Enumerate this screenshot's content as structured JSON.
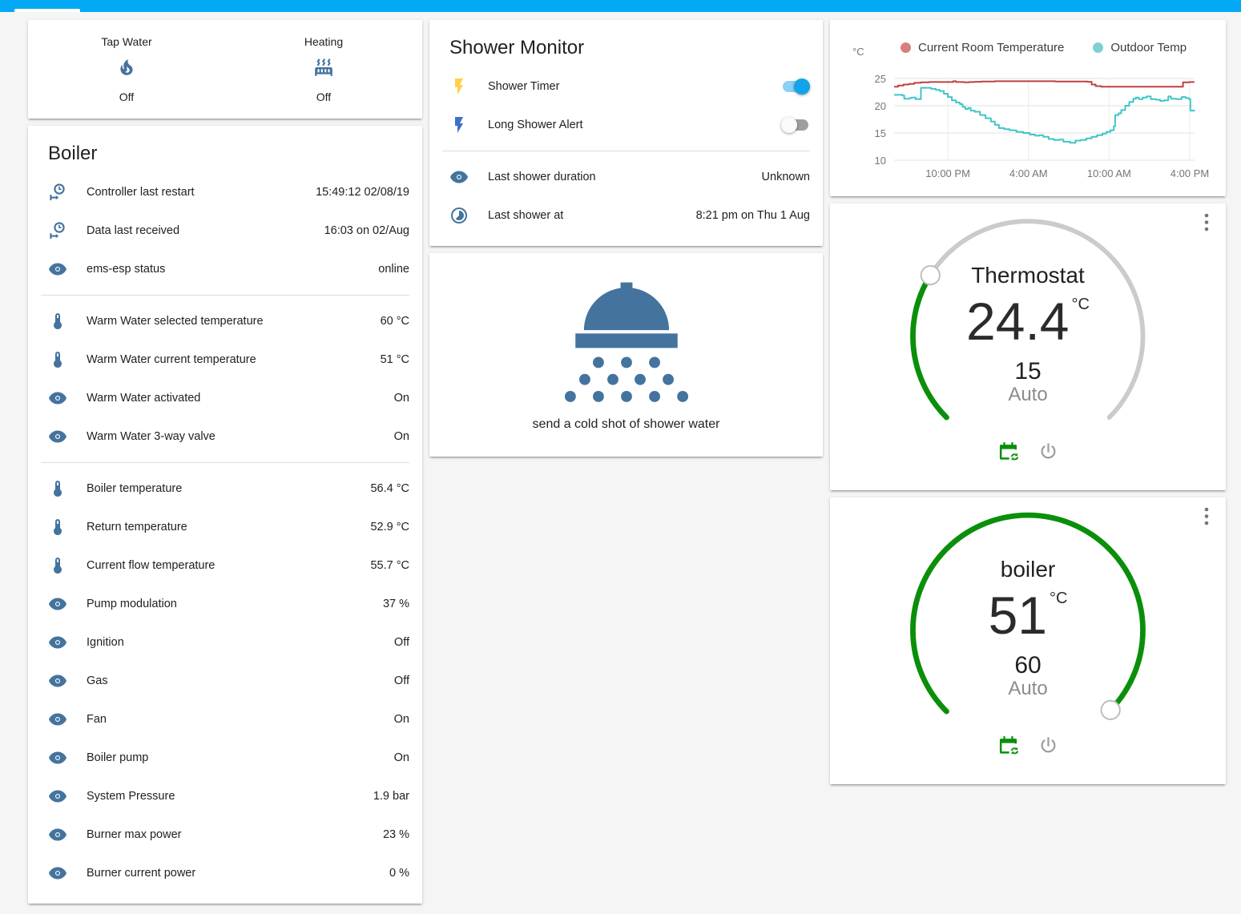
{
  "colors": {
    "header_bar": "#03a9f4",
    "icon": "#44739e",
    "toggle_on_knob": "#10a5e8",
    "toggle_on_track": "#8bd0f5",
    "toggle_off_knob": "#fafafa",
    "toggle_off_track": "#9e9e9e",
    "bolt_yellow": "#fdd14a",
    "bolt_blue": "#3d71c7",
    "dial_green": "#0b8f0b",
    "dial_gray": "#cbcbcb",
    "power_gray": "#9e9e9e",
    "menu_gray": "#757575"
  },
  "glance": {
    "items": [
      {
        "label": "Tap Water",
        "icon": "fire",
        "state": "Off"
      },
      {
        "label": "Heating",
        "icon": "radiator",
        "state": "Off"
      }
    ]
  },
  "boiler": {
    "title": "Boiler",
    "sections": [
      [
        {
          "icon": "clock-start",
          "label": "Controller last restart",
          "value": "15:49:12 02/08/19"
        },
        {
          "icon": "clock-start",
          "label": "Data last received",
          "value": "16:03 on 02/Aug"
        },
        {
          "icon": "eye",
          "label": "ems-esp status",
          "value": "online"
        }
      ],
      [
        {
          "icon": "thermometer",
          "label": "Warm Water selected temperature",
          "value": "60 °C"
        },
        {
          "icon": "thermometer",
          "label": "Warm Water current temperature",
          "value": "51 °C"
        },
        {
          "icon": "eye",
          "label": "Warm Water activated",
          "value": "On"
        },
        {
          "icon": "eye",
          "label": "Warm Water 3-way valve",
          "value": "On"
        }
      ],
      [
        {
          "icon": "thermometer",
          "label": "Boiler temperature",
          "value": "56.4 °C"
        },
        {
          "icon": "thermometer",
          "label": "Return temperature",
          "value": "52.9 °C"
        },
        {
          "icon": "thermometer",
          "label": "Current flow temperature",
          "value": "55.7 °C"
        },
        {
          "icon": "eye",
          "label": "Pump modulation",
          "value": "37 %"
        },
        {
          "icon": "eye",
          "label": "Ignition",
          "value": "Off"
        },
        {
          "icon": "eye",
          "label": "Gas",
          "value": "Off"
        },
        {
          "icon": "eye",
          "label": "Fan",
          "value": "On"
        },
        {
          "icon": "eye",
          "label": "Boiler pump",
          "value": "On"
        },
        {
          "icon": "eye",
          "label": "System Pressure",
          "value": "1.9 bar"
        },
        {
          "icon": "eye",
          "label": "Burner max power",
          "value": "23 %"
        },
        {
          "icon": "eye",
          "label": "Burner current power",
          "value": "0 %"
        }
      ]
    ]
  },
  "shower_monitor": {
    "title": "Shower Monitor",
    "toggle_rows": [
      {
        "icon": "flash",
        "icon_color_key": "bolt_yellow",
        "label": "Shower Timer",
        "on": true
      },
      {
        "icon": "flash",
        "icon_color_key": "bolt_blue",
        "label": "Long Shower Alert",
        "on": false
      }
    ],
    "info_rows": [
      {
        "icon": "eye",
        "label": "Last shower duration",
        "value": "Unknown"
      },
      {
        "icon": "timelapse",
        "label": "Last shower at",
        "value": "8:21 pm on Thu 1 Aug"
      }
    ]
  },
  "shower_action": {
    "caption": "send a cold shot of shower water"
  },
  "chart_data": {
    "type": "line",
    "ylabel": "°C",
    "ylim": [
      10,
      25
    ],
    "yticks": [
      10,
      15,
      20,
      25
    ],
    "x_range_hours": [
      0,
      22.35
    ],
    "xticks": [
      {
        "x": 4,
        "label": "10:00 PM"
      },
      {
        "x": 10,
        "label": "4:00 AM"
      },
      {
        "x": 16,
        "label": "10:00 AM"
      },
      {
        "x": 22,
        "label": "4:00 PM"
      }
    ],
    "grid": true,
    "legend_position": "top",
    "series": [
      {
        "name": "Current Room Temperature",
        "color": "#bf4040",
        "dot_color": "#d87e7e",
        "points": [
          [
            0,
            23.5
          ],
          [
            0.3,
            23.7
          ],
          [
            0.7,
            23.9
          ],
          [
            1.1,
            24.0
          ],
          [
            1.5,
            24.2
          ],
          [
            2,
            24.3
          ],
          [
            2.6,
            24.35
          ],
          [
            3.4,
            24.35
          ],
          [
            4.2,
            24.35
          ],
          [
            4.4,
            24.5
          ],
          [
            4.6,
            24.35
          ],
          [
            5.2,
            24.3
          ],
          [
            5.6,
            24.35
          ],
          [
            6,
            24.4
          ],
          [
            6.5,
            24.45
          ],
          [
            7.5,
            24.5
          ],
          [
            9,
            24.5
          ],
          [
            10.5,
            24.5
          ],
          [
            12,
            24.45
          ],
          [
            13.5,
            24.45
          ],
          [
            14.4,
            24.4
          ],
          [
            14.7,
            23.9
          ],
          [
            15,
            23.6
          ],
          [
            15.4,
            23.5
          ],
          [
            17,
            23.5
          ],
          [
            19,
            23.5
          ],
          [
            21.3,
            23.5
          ],
          [
            21.5,
            24.3
          ],
          [
            22,
            24.35
          ],
          [
            22.35,
            24.35
          ]
        ]
      },
      {
        "name": "Outdoor Temp",
        "color": "#3fc5c8",
        "dot_color": "#7fd0d2",
        "points": [
          [
            0,
            22.0
          ],
          [
            0.6,
            21.9
          ],
          [
            0.75,
            21.3
          ],
          [
            1.15,
            21.4
          ],
          [
            1.3,
            21.5
          ],
          [
            1.6,
            21.2
          ],
          [
            1.9,
            21.2
          ],
          [
            2.0,
            23.3
          ],
          [
            2.6,
            23.3
          ],
          [
            2.75,
            23.1
          ],
          [
            3.1,
            22.9
          ],
          [
            3.4,
            22.7
          ],
          [
            3.7,
            22.2
          ],
          [
            4.0,
            21.6
          ],
          [
            4.3,
            21.0
          ],
          [
            4.6,
            20.6
          ],
          [
            4.9,
            20.3
          ],
          [
            5.1,
            19.8
          ],
          [
            5.3,
            19.4
          ],
          [
            5.5,
            19.6
          ],
          [
            5.7,
            19.1
          ],
          [
            6.0,
            18.9
          ],
          [
            6.4,
            18.3
          ],
          [
            6.8,
            17.7
          ],
          [
            7.2,
            17.1
          ],
          [
            7.5,
            16.5
          ],
          [
            7.8,
            15.9
          ],
          [
            8.2,
            15.7
          ],
          [
            8.6,
            15.5
          ],
          [
            9.1,
            15.2
          ],
          [
            9.6,
            15.0
          ],
          [
            10.1,
            14.7
          ],
          [
            10.5,
            14.5
          ],
          [
            10.8,
            14.6
          ],
          [
            11.1,
            14.3
          ],
          [
            11.5,
            13.9
          ],
          [
            11.9,
            13.7
          ],
          [
            12.3,
            13.8
          ],
          [
            12.6,
            13.4
          ],
          [
            13.1,
            13.2
          ],
          [
            13.5,
            13.6
          ],
          [
            13.9,
            13.7
          ],
          [
            14.3,
            14.0
          ],
          [
            14.7,
            14.3
          ],
          [
            15.1,
            14.6
          ],
          [
            15.5,
            14.9
          ],
          [
            15.8,
            15.2
          ],
          [
            16.1,
            15.5
          ],
          [
            16.35,
            16.2
          ],
          [
            16.45,
            18.3
          ],
          [
            16.7,
            18.6
          ],
          [
            16.9,
            19.2
          ],
          [
            17.2,
            20.0
          ],
          [
            17.5,
            20.7
          ],
          [
            17.8,
            21.3
          ],
          [
            18.0,
            21.5
          ],
          [
            18.2,
            21.2
          ],
          [
            18.5,
            21.5
          ],
          [
            18.8,
            21.7
          ],
          [
            19.1,
            21.2
          ],
          [
            19.5,
            21.1
          ],
          [
            19.8,
            20.9
          ],
          [
            20.1,
            21.0
          ],
          [
            20.4,
            21.7
          ],
          [
            20.6,
            21.3
          ],
          [
            21.0,
            21.2
          ],
          [
            21.4,
            21.6
          ],
          [
            21.7,
            21.4
          ],
          [
            21.95,
            21.2
          ],
          [
            22.05,
            19.1
          ],
          [
            22.35,
            19.0
          ]
        ]
      }
    ]
  },
  "thermostat": {
    "title": "Thermostat",
    "value": "24.4",
    "unit": "°C",
    "target": "15",
    "mode": "Auto"
  },
  "boiler_dial": {
    "title": "boiler",
    "value": "51",
    "unit": "°C",
    "target": "60",
    "mode": "Auto"
  }
}
